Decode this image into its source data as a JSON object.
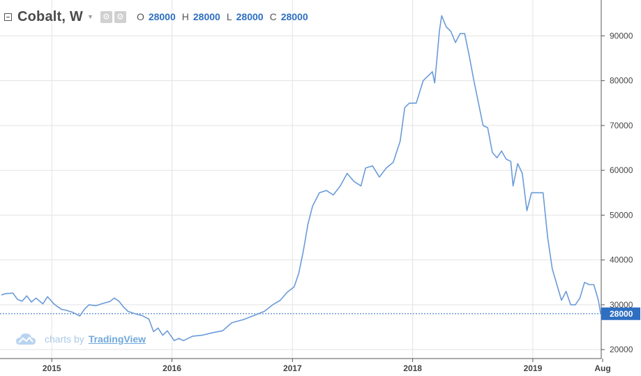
{
  "header": {
    "symbol": "Cobalt, W",
    "ohlc": [
      {
        "key": "O",
        "value": "28000"
      },
      {
        "key": "H",
        "value": "28000"
      },
      {
        "key": "L",
        "value": "28000"
      },
      {
        "key": "C",
        "value": "28000"
      }
    ]
  },
  "branding": {
    "prefix": "charts by",
    "name": "TradingView"
  },
  "colors": {
    "line": "#6a9bd8",
    "grid": "#e3e3e3",
    "last_price_bg": "#2e6fc2",
    "axis": "#555555"
  },
  "chart_data": {
    "type": "line",
    "title": "",
    "xlabel": "",
    "ylabel": "",
    "x_ticks": [
      "2015",
      "2016",
      "2017",
      "2018",
      "2019",
      "Aug"
    ],
    "y_ticks": [
      "20000",
      "30000",
      "40000",
      "50000",
      "60000",
      "70000",
      "80000",
      "90000"
    ],
    "ylim": [
      18000,
      98000
    ],
    "grid": true,
    "price_scale": "right",
    "last_price": 28000,
    "last_price_label": "28000",
    "series": [
      {
        "values": [
          [
            "2014-08-01",
            32200
          ],
          [
            "2014-08-15",
            32500
          ],
          [
            "2014-09-05",
            32600
          ],
          [
            "2014-09-19",
            31200
          ],
          [
            "2014-10-03",
            30800
          ],
          [
            "2014-10-17",
            32000
          ],
          [
            "2014-10-31",
            30600
          ],
          [
            "2014-11-14",
            31500
          ],
          [
            "2014-12-05",
            30200
          ],
          [
            "2014-12-19",
            31800
          ],
          [
            "2015-01-09",
            30100
          ],
          [
            "2015-01-30",
            29000
          ],
          [
            "2015-02-13",
            28800
          ],
          [
            "2015-03-06",
            28300
          ],
          [
            "2015-03-27",
            27500
          ],
          [
            "2015-04-10",
            29000
          ],
          [
            "2015-04-24",
            30000
          ],
          [
            "2015-05-15",
            29800
          ],
          [
            "2015-06-05",
            30300
          ],
          [
            "2015-06-26",
            30700
          ],
          [
            "2015-07-10",
            31500
          ],
          [
            "2015-07-24",
            30800
          ],
          [
            "2015-08-07",
            29500
          ],
          [
            "2015-08-21",
            28500
          ],
          [
            "2015-09-11",
            28000
          ],
          [
            "2015-10-02",
            27600
          ],
          [
            "2015-10-23",
            26800
          ],
          [
            "2015-11-06",
            24000
          ],
          [
            "2015-11-20",
            24800
          ],
          [
            "2015-12-04",
            23200
          ],
          [
            "2015-12-18",
            24200
          ],
          [
            "2016-01-08",
            22000
          ],
          [
            "2016-01-22",
            22500
          ],
          [
            "2016-02-05",
            22000
          ],
          [
            "2016-03-04",
            23000
          ],
          [
            "2016-04-01",
            23200
          ],
          [
            "2016-05-06",
            23800
          ],
          [
            "2016-06-03",
            24200
          ],
          [
            "2016-07-01",
            26000
          ],
          [
            "2016-08-05",
            26700
          ],
          [
            "2016-09-02",
            27500
          ],
          [
            "2016-10-07",
            28500
          ],
          [
            "2016-11-04",
            30100
          ],
          [
            "2016-11-25",
            31000
          ],
          [
            "2016-12-16",
            32800
          ],
          [
            "2017-01-06",
            34000
          ],
          [
            "2017-01-20",
            37000
          ],
          [
            "2017-02-03",
            42000
          ],
          [
            "2017-02-17",
            48000
          ],
          [
            "2017-03-03",
            52000
          ],
          [
            "2017-03-24",
            55000
          ],
          [
            "2017-04-14",
            55500
          ],
          [
            "2017-05-05",
            54500
          ],
          [
            "2017-05-26",
            56500
          ],
          [
            "2017-06-16",
            59300
          ],
          [
            "2017-07-07",
            57500
          ],
          [
            "2017-07-28",
            56500
          ],
          [
            "2017-08-11",
            60500
          ],
          [
            "2017-09-01",
            61000
          ],
          [
            "2017-09-22",
            58500
          ],
          [
            "2017-10-13",
            60500
          ],
          [
            "2017-11-03",
            61800
          ],
          [
            "2017-11-24",
            66500
          ],
          [
            "2017-12-08",
            74000
          ],
          [
            "2017-12-22",
            75000
          ],
          [
            "2018-01-12",
            75000
          ],
          [
            "2018-02-02",
            80000
          ],
          [
            "2018-02-16",
            81000
          ],
          [
            "2018-03-02",
            82000
          ],
          [
            "2018-03-09",
            79500
          ],
          [
            "2018-03-16",
            85000
          ],
          [
            "2018-03-23",
            91000
          ],
          [
            "2018-03-30",
            94500
          ],
          [
            "2018-04-13",
            92000
          ],
          [
            "2018-04-27",
            91000
          ],
          [
            "2018-05-11",
            88500
          ],
          [
            "2018-05-25",
            90500
          ],
          [
            "2018-06-08",
            90500
          ],
          [
            "2018-06-22",
            85500
          ],
          [
            "2018-07-06",
            80000
          ],
          [
            "2018-07-20",
            75000
          ],
          [
            "2018-08-03",
            70000
          ],
          [
            "2018-08-17",
            69500
          ],
          [
            "2018-08-31",
            64000
          ],
          [
            "2018-09-14",
            62800
          ],
          [
            "2018-09-28",
            64300
          ],
          [
            "2018-10-12",
            62500
          ],
          [
            "2018-10-26",
            62000
          ],
          [
            "2018-11-02",
            56500
          ],
          [
            "2018-11-16",
            61500
          ],
          [
            "2018-11-30",
            59300
          ],
          [
            "2018-12-14",
            51000
          ],
          [
            "2018-12-28",
            55000
          ],
          [
            "2019-01-18",
            55000
          ],
          [
            "2019-02-01",
            55000
          ],
          [
            "2019-02-15",
            45000
          ],
          [
            "2019-03-01",
            38000
          ],
          [
            "2019-03-15",
            34500
          ],
          [
            "2019-03-29",
            31000
          ],
          [
            "2019-04-12",
            33000
          ],
          [
            "2019-04-26",
            30000
          ],
          [
            "2019-05-10",
            30000
          ],
          [
            "2019-05-24",
            31500
          ],
          [
            "2019-06-07",
            35000
          ],
          [
            "2019-06-21",
            34500
          ],
          [
            "2019-07-05",
            34500
          ],
          [
            "2019-07-19",
            31000
          ],
          [
            "2019-07-26",
            28000
          ]
        ]
      }
    ]
  }
}
